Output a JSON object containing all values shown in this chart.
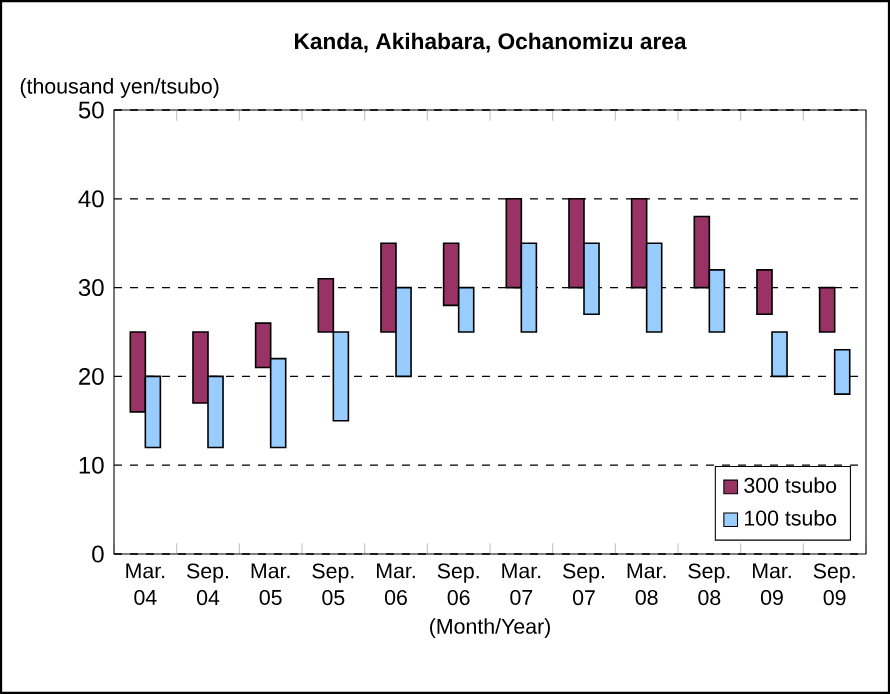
{
  "chart_data": {
    "type": "bar",
    "title": "Kanda, Akihabara, Ochanomizu area",
    "ylabel": "(thousand yen/tsubo)",
    "xlabel": "(Month/Year)",
    "categories": [
      "Mar. 04",
      "Sep. 04",
      "Mar. 05",
      "Sep. 05",
      "Mar. 06",
      "Sep. 06",
      "Mar. 07",
      "Sep. 07",
      "Mar. 08",
      "Sep. 08",
      "Mar. 09",
      "Sep. 09"
    ],
    "series": [
      {
        "name": "300 tsubo",
        "color": "#993366",
        "base": [
          16,
          17,
          21,
          25,
          25,
          28,
          30,
          30,
          30,
          30,
          27,
          25
        ],
        "values": [
          9,
          8,
          5,
          6,
          10,
          7,
          10,
          10,
          10,
          8,
          5,
          5
        ]
      },
      {
        "name": "100 tsubo",
        "color": "#99ccff",
        "base": [
          12,
          12,
          12,
          15,
          20,
          25,
          25,
          27,
          25,
          25,
          20,
          18
        ],
        "values": [
          8,
          8,
          10,
          10,
          10,
          5,
          10,
          8,
          10,
          7,
          5,
          5
        ]
      }
    ],
    "ylim": [
      0,
      50
    ],
    "yticks": [
      0,
      10,
      20,
      30,
      40,
      50
    ],
    "grid": "y",
    "legend": "bottom right"
  }
}
